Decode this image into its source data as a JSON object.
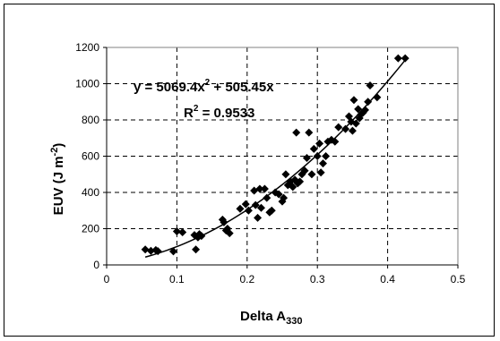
{
  "chart_data": {
    "type": "scatter",
    "xlabel": "Delta A",
    "xlabel_sub": "330",
    "ylabel": "EUV (J m",
    "ylabel_sup": "-2",
    "ylabel_close": ")",
    "xlim": [
      0,
      0.5
    ],
    "ylim": [
      0,
      1200
    ],
    "xticks": [
      0,
      0.1,
      0.2,
      0.3,
      0.4,
      0.5
    ],
    "yticks": [
      0,
      200,
      400,
      600,
      800,
      1000,
      1200
    ],
    "xtick_labels": [
      "0",
      "0.1",
      "0.2",
      "0.3",
      "0.4",
      "0.5"
    ],
    "ytick_labels": [
      "0",
      "200",
      "400",
      "600",
      "800",
      "1000",
      "1200"
    ],
    "grid": "dashed",
    "trendline": {
      "type": "polynomial",
      "a": 5069.4,
      "b": 505.45,
      "x_range": [
        0.055,
        0.425
      ],
      "equation_parts": [
        "y = 5069.4x",
        "2",
        " + 505.45x"
      ],
      "r2_parts": [
        "R",
        "2",
        " = 0.9533"
      ]
    },
    "series": [
      {
        "marker": "diamond",
        "color": "#000000",
        "points": [
          [
            0.055,
            85
          ],
          [
            0.063,
            78
          ],
          [
            0.07,
            82
          ],
          [
            0.073,
            76
          ],
          [
            0.095,
            75
          ],
          [
            0.1,
            185
          ],
          [
            0.108,
            180
          ],
          [
            0.125,
            165
          ],
          [
            0.127,
            85
          ],
          [
            0.13,
            152
          ],
          [
            0.132,
            170
          ],
          [
            0.135,
            160
          ],
          [
            0.165,
            250
          ],
          [
            0.167,
            235
          ],
          [
            0.17,
            190
          ],
          [
            0.172,
            200
          ],
          [
            0.175,
            175
          ],
          [
            0.19,
            310
          ],
          [
            0.198,
            335
          ],
          [
            0.202,
            300
          ],
          [
            0.21,
            410
          ],
          [
            0.212,
            330
          ],
          [
            0.215,
            260
          ],
          [
            0.218,
            420
          ],
          [
            0.22,
            315
          ],
          [
            0.225,
            420
          ],
          [
            0.228,
            370
          ],
          [
            0.232,
            290
          ],
          [
            0.235,
            300
          ],
          [
            0.24,
            400
          ],
          [
            0.245,
            390
          ],
          [
            0.25,
            350
          ],
          [
            0.252,
            370
          ],
          [
            0.255,
            500
          ],
          [
            0.258,
            440
          ],
          [
            0.262,
            460
          ],
          [
            0.265,
            430
          ],
          [
            0.268,
            470
          ],
          [
            0.27,
            730
          ],
          [
            0.272,
            450
          ],
          [
            0.275,
            460
          ],
          [
            0.278,
            500
          ],
          [
            0.282,
            520
          ],
          [
            0.285,
            590
          ],
          [
            0.288,
            730
          ],
          [
            0.292,
            500
          ],
          [
            0.295,
            640
          ],
          [
            0.3,
            600
          ],
          [
            0.303,
            670
          ],
          [
            0.305,
            510
          ],
          [
            0.308,
            560
          ],
          [
            0.312,
            600
          ],
          [
            0.315,
            680
          ],
          [
            0.32,
            690
          ],
          [
            0.325,
            680
          ],
          [
            0.33,
            760
          ],
          [
            0.34,
            750
          ],
          [
            0.345,
            820
          ],
          [
            0.348,
            790
          ],
          [
            0.35,
            740
          ],
          [
            0.352,
            910
          ],
          [
            0.355,
            780
          ],
          [
            0.358,
            860
          ],
          [
            0.36,
            810
          ],
          [
            0.362,
            830
          ],
          [
            0.365,
            840
          ],
          [
            0.368,
            855
          ],
          [
            0.372,
            900
          ],
          [
            0.375,
            990
          ],
          [
            0.385,
            925
          ],
          [
            0.415,
            1140
          ],
          [
            0.425,
            1140
          ]
        ]
      }
    ]
  }
}
